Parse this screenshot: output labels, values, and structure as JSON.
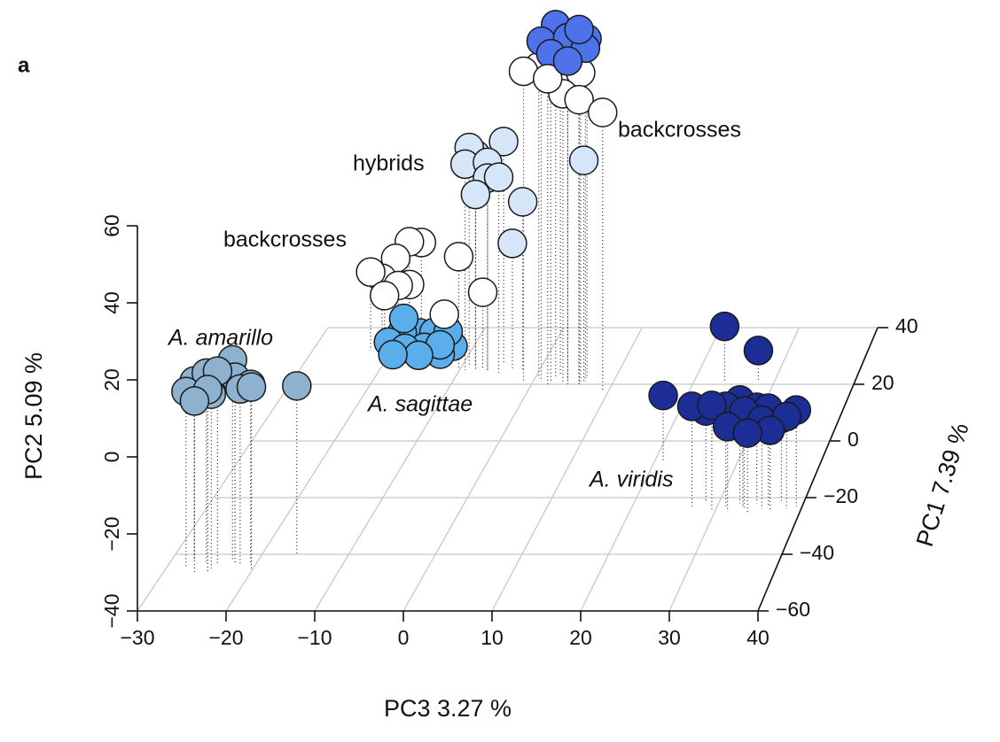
{
  "panel_label": "a",
  "chart_data": {
    "type": "scatter3d",
    "xlabel": "PC3 3.27 %",
    "ylabel": "PC2 5.09 %",
    "zlabel": "PC1 7.39 %",
    "xlim": [
      -30,
      40
    ],
    "ylim": [
      -40,
      60
    ],
    "zlim": [
      -60,
      40
    ],
    "xticks": [
      {
        "value": -30,
        "label": "−30"
      },
      {
        "value": -20,
        "label": "−20"
      },
      {
        "value": -10,
        "label": "−10"
      },
      0,
      10,
      20,
      30,
      40
    ],
    "yticks": [
      {
        "value": -40,
        "label": "−40"
      },
      {
        "value": -20,
        "label": "−20"
      },
      0,
      20,
      40,
      60
    ],
    "zticks": [
      {
        "value": -60,
        "label": "−60"
      },
      {
        "value": -40,
        "label": "−40"
      },
      {
        "value": -20,
        "label": "−20"
      },
      0,
      20,
      40
    ],
    "grid": true,
    "series": [
      {
        "name": "A. amarillo",
        "color": "#8fb1d0",
        "x": [
          -27.7,
          -25.8,
          -25,
          -23,
          -21.7,
          -20.2,
          -26.3,
          -24.3,
          -22.5,
          -27.4,
          -24.8,
          -20.7,
          -16
        ],
        "y": [
          6.7,
          10.2,
          7.9,
          13,
          6.7,
          7.9,
          5.6,
          11.4,
          9.1,
          7.4,
          6,
          7.2,
          4.7
        ],
        "z": [
          -45,
          -43,
          -46,
          -42,
          -44,
          -45,
          -47,
          -44,
          -43,
          -42,
          -45,
          -43,
          -40
        ]
      },
      {
        "name": "A. sagittae",
        "color": "#5aaeea",
        "x": [
          -20,
          -18.5,
          -17.7,
          -16.5,
          -15.5,
          -14.5,
          -13.3,
          -12.5,
          -12.1,
          -19,
          -16,
          -13.5,
          -18.3
        ],
        "y": [
          -36,
          -34,
          -37,
          -35,
          -37.5,
          -34,
          -36,
          -33,
          -38,
          -38,
          -39,
          -39.5,
          -30
        ],
        "z": [
          30,
          31,
          29,
          32,
          30,
          31,
          29,
          30,
          31,
          28,
          29,
          30,
          31
        ]
      },
      {
        "name": "backcrosses",
        "color": "#ffffff",
        "x": [
          -22.7,
          -21.5,
          -20,
          -18.5,
          -17.2,
          -19,
          -20.5,
          -17.8,
          -10.1,
          -7.1,
          -11.9
        ],
        "y": [
          -17.4,
          -20,
          -15,
          -11,
          -12,
          -20.5,
          -22.6,
          -21,
          -7.5,
          -17.7,
          -24
        ],
        "z": [
          32,
          33,
          34,
          35,
          36,
          31,
          30,
          32,
          25,
          25,
          25
        ]
      },
      {
        "name": "hybrids",
        "color": "#d4e6f8",
        "x": [
          -9.3,
          -8.2,
          -6.5,
          -4.9,
          -6.5,
          -4.9,
          -8,
          -2.1,
          -3.4,
          -9,
          6.3
        ],
        "y": [
          19,
          21,
          19.5,
          24,
          15,
          16,
          10.3,
          8.2,
          -3.7,
          23,
          23
        ],
        "z": [
          25,
          26,
          25,
          27,
          25,
          24,
          25,
          25,
          25,
          26,
          21
        ]
      },
      {
        "name": "backcrosses",
        "color": "#ffffff",
        "x": [
          -1.2,
          0.5,
          2,
          5.9,
          3.7,
          5.9,
          9.2
        ],
        "y": [
          48.4,
          49,
          47,
          48,
          42,
          41,
          38.8
        ],
        "z": [
          21,
          22,
          20,
          21,
          21,
          20,
          18
        ]
      },
      {
        "color": "#4e72ea",
        "x": [
          1,
          2.6,
          4.3,
          5.9,
          6.5,
          2.2,
          4.5,
          6.5,
          3
        ],
        "y": [
          57,
          61,
          58,
          61,
          57,
          53.4,
          52,
          55,
          55
        ],
        "z": [
          21,
          22,
          21,
          20,
          22,
          21,
          20,
          21,
          23
        ]
      },
      {
        "name": "A. viridis",
        "color": "#1c2d95",
        "x": [
          21,
          23.8,
          28,
          27,
          28.5,
          29.5,
          31,
          31.5,
          32.5,
          33.3,
          33,
          34.5,
          35.4,
          36,
          37.4,
          38.3,
          39.3,
          34,
          36.5
        ],
        "y": [
          -22,
          -24.3,
          -31.2,
          -13,
          -15,
          -12,
          -13,
          -17,
          -12,
          -13.5,
          -17.5,
          -14,
          -16,
          -13.5,
          -17,
          -15,
          -14,
          -18,
          -18
        ],
        "z": [
          -7,
          21,
          21,
          -23,
          -22,
          -24,
          -23,
          -25,
          -22,
          -24,
          -23,
          -22,
          -24,
          -23,
          -22,
          -24,
          -23,
          -26,
          -25
        ]
      }
    ]
  }
}
